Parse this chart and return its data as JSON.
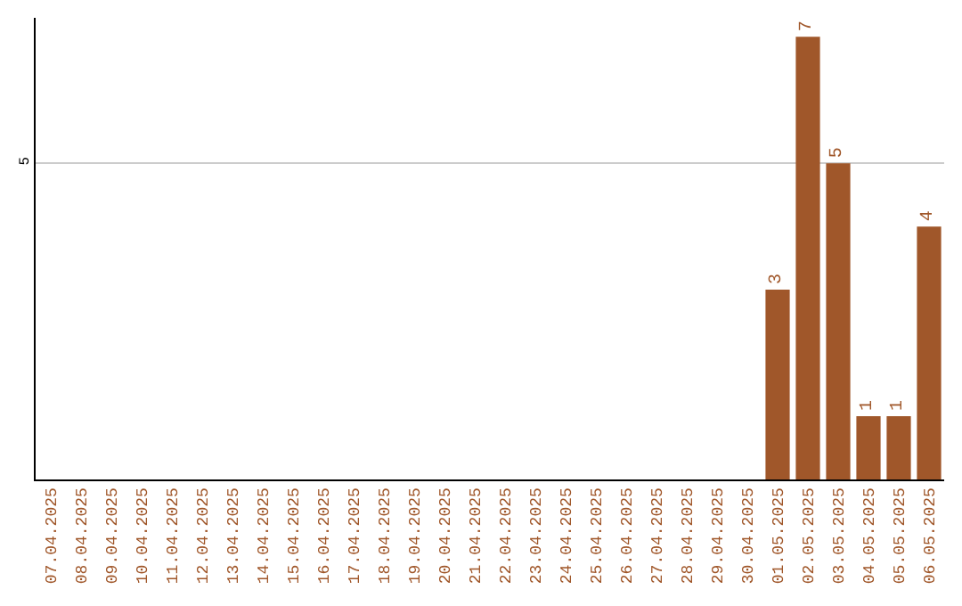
{
  "chart_data": {
    "type": "bar",
    "categories": [
      "07.04.2025",
      "08.04.2025",
      "09.04.2025",
      "10.04.2025",
      "11.04.2025",
      "12.04.2025",
      "13.04.2025",
      "14.04.2025",
      "15.04.2025",
      "16.04.2025",
      "17.04.2025",
      "18.04.2025",
      "19.04.2025",
      "20.04.2025",
      "21.04.2025",
      "22.04.2025",
      "23.04.2025",
      "24.04.2025",
      "25.04.2025",
      "26.04.2025",
      "27.04.2025",
      "28.04.2025",
      "29.04.2025",
      "30.04.2025",
      "01.05.2025",
      "02.05.2025",
      "03.05.2025",
      "04.05.2025",
      "05.05.2025",
      "06.05.2025"
    ],
    "values": [
      null,
      null,
      null,
      null,
      null,
      null,
      null,
      null,
      null,
      null,
      null,
      null,
      null,
      null,
      null,
      null,
      null,
      null,
      null,
      null,
      null,
      null,
      null,
      null,
      3,
      7,
      5,
      1,
      1,
      4
    ],
    "data_labels": true,
    "color": "#a0572a",
    "ylim": [
      0,
      7.3
    ],
    "yticks": [
      5
    ],
    "grid": "y"
  }
}
